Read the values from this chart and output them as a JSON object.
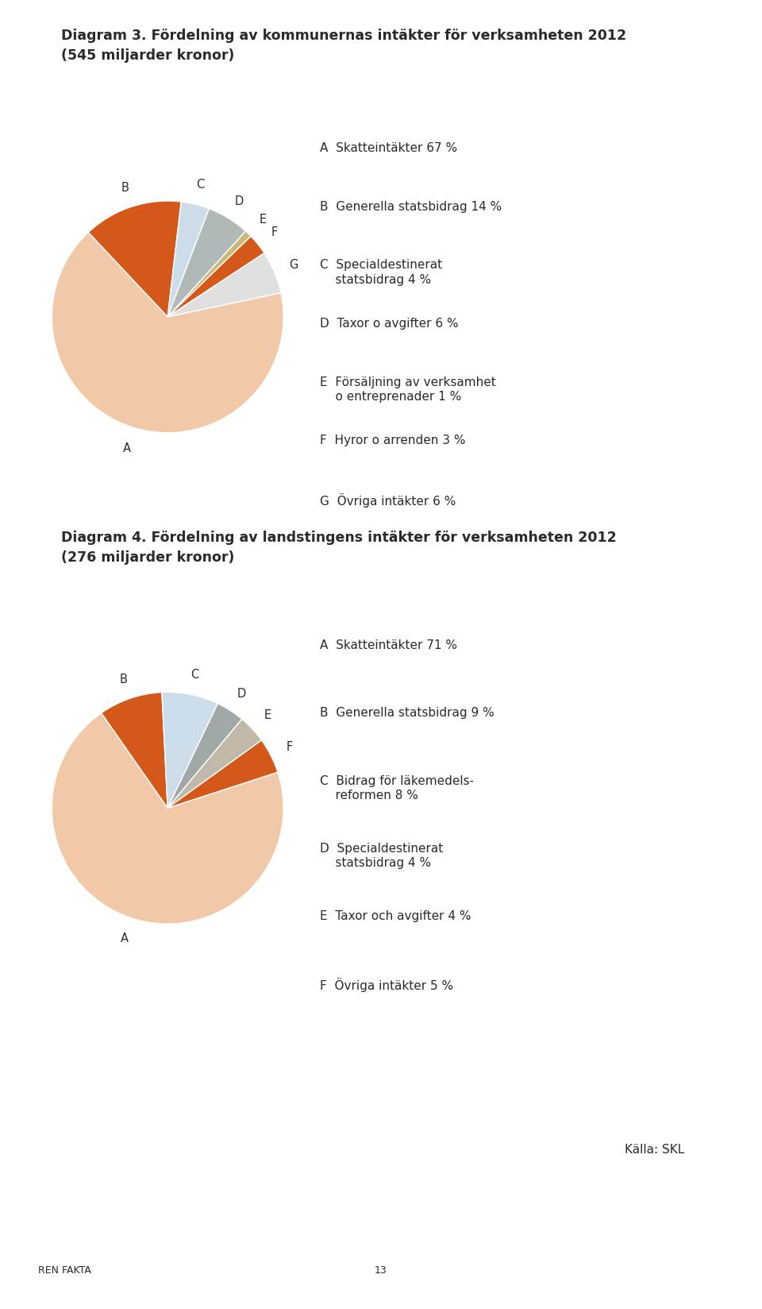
{
  "title1": "Diagram 3. Fördelning av kommunernas intäkter för verksamheten 2012\n(545 miljarder kronor)",
  "title2": "Diagram 4. Fördelning av landstingens intäkter för verksamheten 2012\n(276 miljarder kronor)",
  "source": "Källa: SKL",
  "footer_left": "REN FAKTA",
  "footer_page": "13",
  "chart1": {
    "labels": [
      "A",
      "B",
      "C",
      "D",
      "E",
      "F",
      "G"
    ],
    "values": [
      67,
      14,
      4,
      6,
      1,
      3,
      6
    ],
    "colors": [
      "#f2c9a8",
      "#d4581a",
      "#ccdce8",
      "#b0b8b8",
      "#c8b87a",
      "#d4581a",
      "#e0e0e0"
    ],
    "legend": [
      "A  Skatteintäkter 67 %",
      "B  Generella statsbidrag 14 %",
      "C  Specialdestinerat\n    statsbidrag 4 %",
      "D  Taxor o avgifter 6 %",
      "E  Försäljning av verksamhet\n    o entreprenader 1 %",
      "F  Hyror o arrenden 3 %",
      "G  Övriga intäkter 6 %"
    ]
  },
  "chart2": {
    "labels": [
      "A",
      "B",
      "C",
      "D",
      "E",
      "F"
    ],
    "values": [
      71,
      9,
      8,
      4,
      4,
      5
    ],
    "colors": [
      "#f2c9a8",
      "#d4581a",
      "#ccdce8",
      "#a0a8a8",
      "#c0b8a8",
      "#d4581a"
    ],
    "legend": [
      "A  Skatteintäkter 71 %",
      "B  Generella statsbidrag 9 %",
      "C  Bidrag för läkemedels-\n    reformen 8 %",
      "D  Specialdestinerat\n    statsbidrag 4 %",
      "E  Taxor och avgifter 4 %",
      "F  Övriga intäkter 5 %"
    ]
  },
  "bg_color": "#ffffff",
  "text_color": "#2a2a2a",
  "title_fontsize": 12.5,
  "legend_fontsize": 11,
  "label_fontsize": 10.5,
  "pie1_startangle": 12,
  "pie2_startangle": 18
}
